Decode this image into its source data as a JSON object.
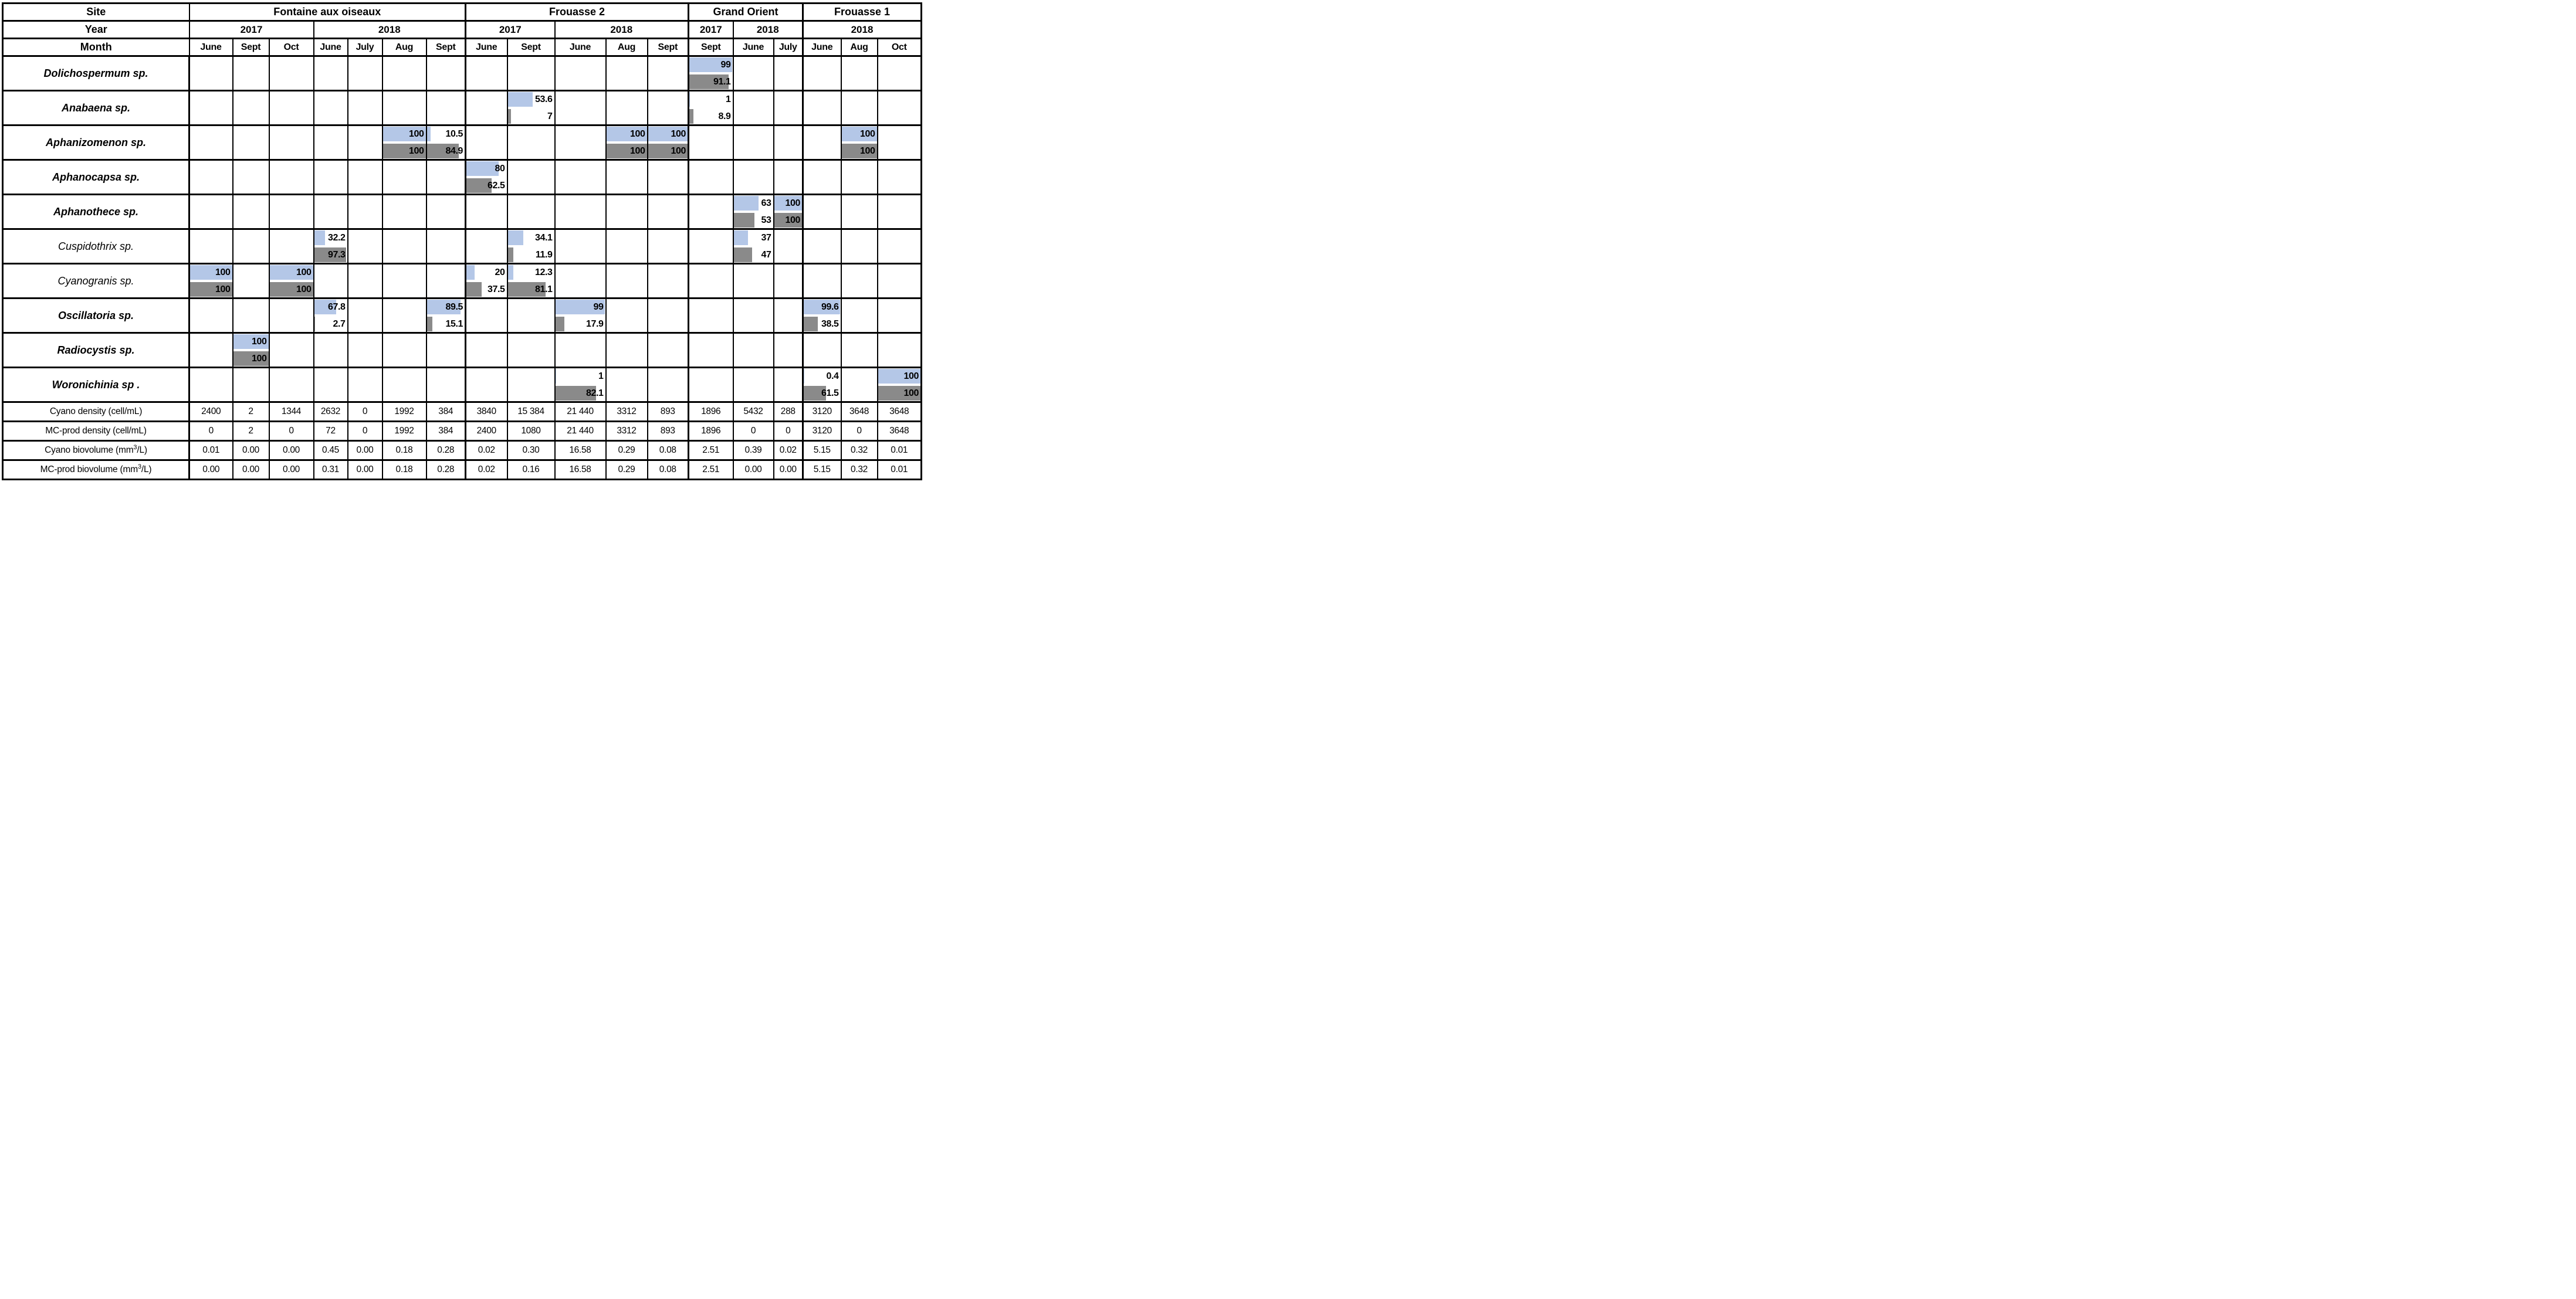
{
  "bar_colors": {
    "blue": "#B4C7E7",
    "gray": "#8A8A8A"
  },
  "header": {
    "site_label": "Site",
    "year_label": "Year",
    "month_label": "Month",
    "sites": [
      {
        "name": "Fontaine aux oiseaux",
        "years": [
          {
            "year": "2017",
            "months": [
              "June",
              "Sept",
              "Oct"
            ]
          },
          {
            "year": "2018",
            "months": [
              "June",
              "July",
              "Aug",
              "Sept"
            ]
          }
        ]
      },
      {
        "name": "Frouasse 2",
        "years": [
          {
            "year": "2017",
            "months": [
              "June",
              "Sept"
            ]
          },
          {
            "year": "2018",
            "months": [
              "June",
              "Aug",
              "Sept"
            ]
          }
        ]
      },
      {
        "name": "Grand Orient",
        "years": [
          {
            "year": "2017",
            "months": [
              "Sept"
            ]
          },
          {
            "year": "2018",
            "months": [
              "June",
              "July"
            ]
          }
        ]
      },
      {
        "name": "Frouasse 1",
        "years": [
          {
            "year": "2018",
            "months": [
              "June",
              "Aug",
              "Oct"
            ]
          }
        ]
      }
    ]
  },
  "species": [
    {
      "name": "Dolichospermum sp.",
      "bold": true,
      "cells": {
        "12": {
          "b": "99",
          "g": "91.1"
        }
      }
    },
    {
      "name": "Anabaena sp.",
      "bold": true,
      "cells": {
        "8": {
          "b": "53.6",
          "g": "7"
        },
        "12": {
          "b": "1",
          "g": "8.9"
        }
      }
    },
    {
      "name": "Aphanizomenon sp.",
      "bold": true,
      "cells": {
        "5": {
          "b": "100",
          "g": "100"
        },
        "6": {
          "b": "10.5",
          "g": "84.9"
        },
        "10": {
          "b": "100",
          "g": "100"
        },
        "11": {
          "b": "100",
          "g": "100"
        },
        "16": {
          "b": "100",
          "g": "100"
        }
      }
    },
    {
      "name": "Aphanocapsa sp.",
      "bold": true,
      "cells": {
        "7": {
          "b": "80",
          "g": "62.5"
        }
      }
    },
    {
      "name": "Aphanothece sp.",
      "bold": true,
      "cells": {
        "13": {
          "b": "63",
          "g": "53"
        },
        "14": {
          "b": "100",
          "g": "100"
        }
      }
    },
    {
      "name": "Cuspidothrix sp.",
      "bold": false,
      "cells": {
        "3": {
          "b": "32.2",
          "g": "97.3"
        },
        "8": {
          "b": "34.1",
          "g": "11.9"
        },
        "13": {
          "b": "37",
          "g": "47"
        }
      }
    },
    {
      "name": "Cyanogranis sp.",
      "bold": false,
      "cells": {
        "0": {
          "b": "100",
          "g": "100"
        },
        "2": {
          "b": "100",
          "g": "100"
        },
        "7": {
          "b": "20",
          "g": "37.5"
        },
        "8": {
          "b": "12.3",
          "g": "81.1"
        }
      }
    },
    {
      "name": "Oscillatoria sp.",
      "bold": true,
      "cells": {
        "3": {
          "b": "67.8",
          "g": "2.7"
        },
        "6": {
          "b": "89.5",
          "g": "15.1"
        },
        "9": {
          "b": "99",
          "g": "17.9"
        },
        "15": {
          "b": "99.6",
          "g": "38.5"
        }
      }
    },
    {
      "name": "Radiocystis sp.",
      "bold": true,
      "cells": {
        "1": {
          "b": "100",
          "g": "100"
        }
      }
    },
    {
      "name": "Woronichinia sp .",
      "bold": true,
      "cells": {
        "9": {
          "b": "1",
          "g": "82.1"
        },
        "15": {
          "b": "0.4",
          "g": "61.5"
        },
        "17": {
          "b": "100",
          "g": "100"
        }
      }
    }
  ],
  "metrics": [
    {
      "label": "Cyano density (cell/mL)",
      "values": [
        "2400",
        "2",
        "1344",
        "2632",
        "0",
        "1992",
        "384",
        "3840",
        "15 384",
        "21 440",
        "3312",
        "893",
        "1896",
        "5432",
        "288",
        "3120",
        "3648",
        "3648"
      ]
    },
    {
      "label": "MC-prod density (cell/mL)",
      "values": [
        "0",
        "2",
        "0",
        "72",
        "0",
        "1992",
        "384",
        "2400",
        "1080",
        "21 440",
        "3312",
        "893",
        "1896",
        "0",
        "0",
        "3120",
        "0",
        "3648"
      ]
    },
    {
      "label": "Cyano biovolume (mm",
      "sup": "3",
      "label_end": "/L)",
      "values": [
        "0.01",
        "0.00",
        "0.00",
        "0.45",
        "0.00",
        "0.18",
        "0.28",
        "0.02",
        "0.30",
        "16.58",
        "0.29",
        "0.08",
        "2.51",
        "0.39",
        "0.02",
        "5.15",
        "0.32",
        "0.01"
      ]
    },
    {
      "label": "MC-prod biovolume (mm",
      "sup": "3",
      "label_end": "/L)",
      "values": [
        "0.00",
        "0.00",
        "0.00",
        "0.31",
        "0.00",
        "0.18",
        "0.28",
        "0.02",
        "0.16",
        "16.58",
        "0.29",
        "0.08",
        "2.51",
        "0.00",
        "0.00",
        "5.15",
        "0.32",
        "0.01"
      ]
    }
  ]
}
